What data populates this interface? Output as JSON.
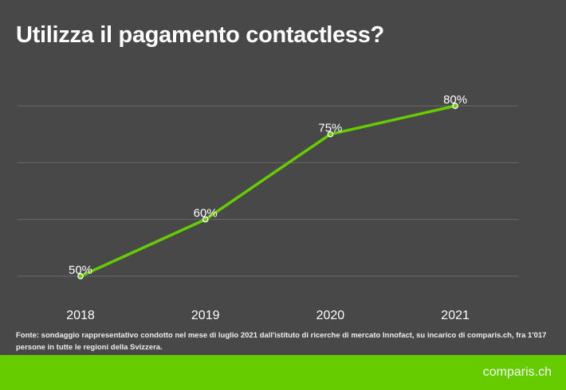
{
  "title": "Utilizza il pagamento contactless?",
  "source": "Fonte: sondaggio rappresentativo condotto nel mese di luglio 2021 dall'istituto di ricerche di mercato Innofact, su incarico di comparis.ch, fra 1'017 persone in tutte le regioni della Svizzera.",
  "logo": "comparis.ch",
  "colors": {
    "background": "#484848",
    "line": "#66cc00",
    "footer": "#66cc00",
    "grid": "#6a6a6a"
  },
  "chart_data": {
    "type": "line",
    "title": "Utilizza il pagamento contactless?",
    "categories": [
      "2018",
      "2019",
      "2020",
      "2021"
    ],
    "values": [
      50,
      60,
      75,
      80
    ],
    "data_labels": [
      "50%",
      "60%",
      "75%",
      "80%"
    ],
    "ylim": [
      50,
      80
    ],
    "gridlines": [
      50,
      60,
      70,
      80
    ],
    "grid": true,
    "y_axis_labels_shown": false,
    "legend": "none"
  }
}
